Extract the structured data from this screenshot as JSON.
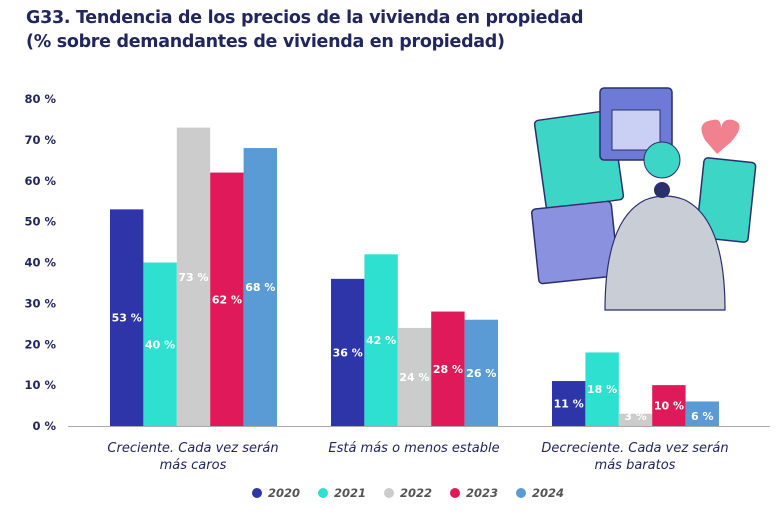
{
  "chart_data": {
    "type": "bar",
    "title": "G33. Tendencia de los precios de la vivienda en propiedad",
    "subtitle": "(% sobre demandantes de vivienda en propiedad)",
    "categories": [
      "Creciente. Cada vez serán más caros",
      "Está más o menos estable",
      "Decreciente. Cada vez serán más baratos"
    ],
    "series": [
      {
        "name": "2020",
        "color": "#2e35a8",
        "values": [
          53,
          36,
          11
        ]
      },
      {
        "name": "2021",
        "color": "#2ee0cf",
        "values": [
          40,
          42,
          18
        ]
      },
      {
        "name": "2022",
        "color": "#cccccc",
        "values": [
          73,
          24,
          3
        ]
      },
      {
        "name": "2023",
        "color": "#e0195a",
        "values": [
          62,
          28,
          10
        ]
      },
      {
        "name": "2024",
        "color": "#5b9bd5",
        "values": [
          68,
          26,
          6
        ]
      }
    ],
    "ylim": [
      0,
      80
    ],
    "yticks": [
      "0 %",
      "10 %",
      "20 %",
      "30 %",
      "40 %",
      "50 %",
      "60 %",
      "70 %",
      "80 %"
    ],
    "value_suffix": " %",
    "legend": "bottom",
    "grid": false
  }
}
